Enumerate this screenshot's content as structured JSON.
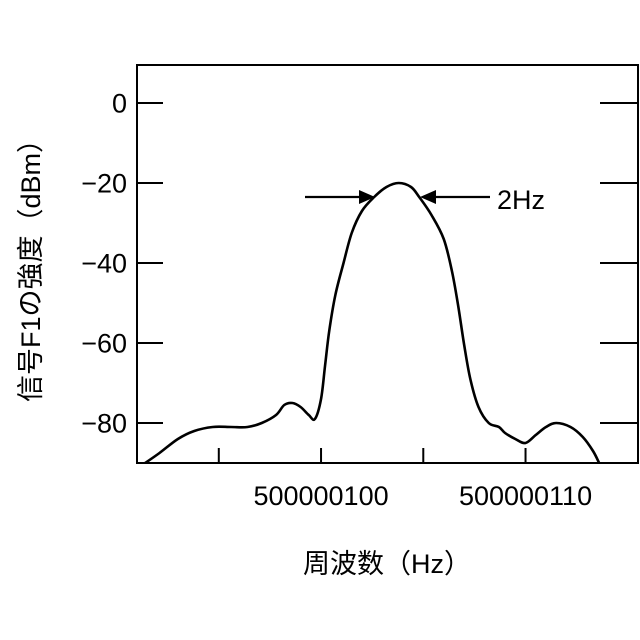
{
  "chart_data": {
    "type": "line",
    "xlabel": "周波数（Hz）",
    "ylabel": "信号F1の強度（dBm）",
    "xlim": [
      500000091,
      500000115.5
    ],
    "ylim": [
      -90,
      9.5
    ],
    "xticks": [
      500000095,
      500000100,
      500000105,
      500000110
    ],
    "xticklabels": [
      {
        "value": 500000100,
        "text": "500000100"
      },
      {
        "value": 500000110,
        "text": "500000110"
      }
    ],
    "yticks": {
      "values": [
        0,
        -20,
        -40,
        -60,
        -80
      ],
      "labels": [
        "0",
        "−20",
        "−40",
        "−60",
        "−80"
      ]
    },
    "grid": false,
    "legend": "none",
    "colors": {
      "line": "#000000",
      "axes": "#000000",
      "background": "#ffffff"
    },
    "series": [
      {
        "x": [
          500000091.4,
          500000092.1,
          500000093.0,
          500000093.8,
          500000094.7,
          500000095.6,
          500000096.4,
          500000097.1,
          500000097.8,
          500000098.2,
          500000098.6,
          500000099.0,
          500000099.4,
          500000099.7,
          500000100.0,
          500000100.2,
          500000100.4,
          500000100.7,
          500000101.1,
          500000101.5,
          500000102.0,
          500000102.6,
          500000103.2,
          500000103.8,
          500000104.4,
          500000104.8,
          500000105.4,
          500000106.0,
          500000106.4,
          500000106.7,
          500000107.0,
          500000107.3,
          500000107.7,
          500000108.2,
          500000108.7,
          500000109.0,
          500000109.5,
          500000110.0,
          500000110.5,
          500000111.0,
          500000111.5,
          500000112.2,
          500000112.8,
          500000113.3,
          500000113.6
        ],
        "y": [
          -90,
          -87.5,
          -84,
          -82,
          -81,
          -81,
          -81,
          -80,
          -78,
          -75.5,
          -75,
          -76,
          -78,
          -79,
          -74,
          -65.5,
          -57,
          -48,
          -40,
          -32.5,
          -27,
          -23.5,
          -21,
          -20,
          -21,
          -23.5,
          -28,
          -34,
          -42,
          -50.5,
          -60.5,
          -69,
          -76,
          -80,
          -81,
          -82.5,
          -84,
          -85,
          -83,
          -81,
          -80,
          -81,
          -83.5,
          -87,
          -90
        ]
      }
    ],
    "annotations": [
      {
        "text": "2Hz"
      }
    ]
  }
}
